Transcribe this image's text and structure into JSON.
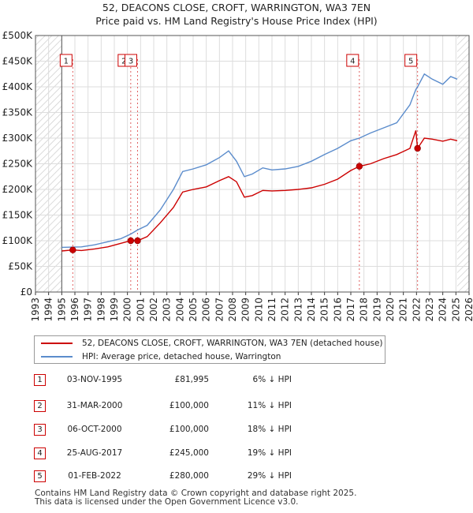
{
  "chart_data": {
    "type": "line",
    "title": "52, DEACONS CLOSE, CROFT, WARRINGTON, WA3 7EN",
    "subtitle": "Price paid vs. HM Land Registry's House Price Index (HPI)",
    "xlim": [
      1993,
      2026
    ],
    "ylim": [
      0,
      500000
    ],
    "x_ticks": [
      "1993",
      "1994",
      "1995",
      "1996",
      "1997",
      "1998",
      "1999",
      "2000",
      "2001",
      "2002",
      "2003",
      "2004",
      "2005",
      "2006",
      "2007",
      "2008",
      "2009",
      "2010",
      "2011",
      "2012",
      "2013",
      "2014",
      "2015",
      "2016",
      "2017",
      "2018",
      "2019",
      "2020",
      "2021",
      "2022",
      "2023",
      "2024",
      "2025",
      "2026"
    ],
    "y_ticks": [
      {
        "value": 0,
        "label": "£0"
      },
      {
        "value": 50000,
        "label": "£50K"
      },
      {
        "value": 100000,
        "label": "£100K"
      },
      {
        "value": 150000,
        "label": "£150K"
      },
      {
        "value": 200000,
        "label": "£200K"
      },
      {
        "value": 250000,
        "label": "£250K"
      },
      {
        "value": 300000,
        "label": "£300K"
      },
      {
        "value": 350000,
        "label": "£350K"
      },
      {
        "value": 400000,
        "label": "£400K"
      },
      {
        "value": 450000,
        "label": "£450K"
      },
      {
        "value": 500000,
        "label": "£500K"
      }
    ],
    "hatched_before": 1995.0,
    "hatched_after": 2025.1,
    "series": [
      {
        "name": "52, DEACONS CLOSE, CROFT, WARRINGTON, WA3 7EN (detached house)",
        "color": "#cc0000",
        "points": [
          [
            1995.0,
            80000
          ],
          [
            1995.84,
            81995
          ],
          [
            1996.5,
            81000
          ],
          [
            1997.5,
            84000
          ],
          [
            1998.5,
            88000
          ],
          [
            1999.5,
            95000
          ],
          [
            2000.25,
            100000
          ],
          [
            2000.77,
            100000
          ],
          [
            2001.5,
            108000
          ],
          [
            2002.5,
            135000
          ],
          [
            2003.5,
            165000
          ],
          [
            2004.2,
            195000
          ],
          [
            2005.0,
            200000
          ],
          [
            2006.0,
            205000
          ],
          [
            2007.0,
            217000
          ],
          [
            2007.7,
            225000
          ],
          [
            2008.3,
            215000
          ],
          [
            2008.9,
            185000
          ],
          [
            2009.5,
            188000
          ],
          [
            2010.3,
            198000
          ],
          [
            2011.0,
            197000
          ],
          [
            2012.0,
            198000
          ],
          [
            2013.0,
            200000
          ],
          [
            2014.0,
            203000
          ],
          [
            2015.0,
            210000
          ],
          [
            2016.0,
            220000
          ],
          [
            2017.0,
            237000
          ],
          [
            2017.65,
            245000
          ],
          [
            2018.5,
            250000
          ],
          [
            2019.5,
            260000
          ],
          [
            2020.5,
            268000
          ],
          [
            2021.5,
            280000
          ],
          [
            2021.95,
            315000
          ],
          [
            2022.08,
            280000
          ],
          [
            2022.6,
            300000
          ],
          [
            2023.2,
            298000
          ],
          [
            2024.0,
            294000
          ],
          [
            2024.6,
            298000
          ],
          [
            2025.1,
            295000
          ]
        ]
      },
      {
        "name": "HPI: Average price, detached house, Warrington",
        "color": "#5b8ccc",
        "points": [
          [
            1995.0,
            87000
          ],
          [
            1995.84,
            87500
          ],
          [
            1996.5,
            88000
          ],
          [
            1997.5,
            92000
          ],
          [
            1998.5,
            98000
          ],
          [
            1999.5,
            104000
          ],
          [
            2000.25,
            113000
          ],
          [
            2000.77,
            121000
          ],
          [
            2001.5,
            130000
          ],
          [
            2002.5,
            160000
          ],
          [
            2003.5,
            200000
          ],
          [
            2004.2,
            235000
          ],
          [
            2005.0,
            240000
          ],
          [
            2006.0,
            248000
          ],
          [
            2007.0,
            262000
          ],
          [
            2007.7,
            275000
          ],
          [
            2008.3,
            255000
          ],
          [
            2008.9,
            225000
          ],
          [
            2009.5,
            230000
          ],
          [
            2010.3,
            242000
          ],
          [
            2011.0,
            238000
          ],
          [
            2012.0,
            240000
          ],
          [
            2013.0,
            245000
          ],
          [
            2014.0,
            255000
          ],
          [
            2015.0,
            268000
          ],
          [
            2016.0,
            280000
          ],
          [
            2017.0,
            295000
          ],
          [
            2017.65,
            300000
          ],
          [
            2018.5,
            310000
          ],
          [
            2019.5,
            320000
          ],
          [
            2020.5,
            330000
          ],
          [
            2021.5,
            365000
          ],
          [
            2021.95,
            395000
          ],
          [
            2022.08,
            400000
          ],
          [
            2022.6,
            425000
          ],
          [
            2023.2,
            415000
          ],
          [
            2024.0,
            405000
          ],
          [
            2024.6,
            420000
          ],
          [
            2025.1,
            415000
          ]
        ]
      }
    ],
    "sales": [
      {
        "label": "1",
        "x": 1995.84,
        "value": 81995
      },
      {
        "label": "2",
        "x": 2000.25,
        "value": 100000
      },
      {
        "label": "3",
        "x": 2000.77,
        "value": 100000
      },
      {
        "label": "4",
        "x": 2017.65,
        "value": 245000
      },
      {
        "label": "5",
        "x": 2022.08,
        "value": 280000
      }
    ]
  },
  "legend": {
    "items": [
      {
        "label": "52, DEACONS CLOSE, CROFT, WARRINGTON, WA3 7EN (detached house)",
        "color": "#cc0000"
      },
      {
        "label": "HPI: Average price, detached house, Warrington",
        "color": "#5b8ccc"
      }
    ]
  },
  "transactions": [
    {
      "num": "1",
      "date": "03-NOV-1995",
      "price": "£81,995",
      "hpi": "6% ↓ HPI"
    },
    {
      "num": "2",
      "date": "31-MAR-2000",
      "price": "£100,000",
      "hpi": "11% ↓ HPI"
    },
    {
      "num": "3",
      "date": "06-OCT-2000",
      "price": "£100,000",
      "hpi": "18% ↓ HPI"
    },
    {
      "num": "4",
      "date": "25-AUG-2017",
      "price": "£245,000",
      "hpi": "19% ↓ HPI"
    },
    {
      "num": "5",
      "date": "01-FEB-2022",
      "price": "£280,000",
      "hpi": "29% ↓ HPI"
    }
  ],
  "footer": {
    "line1": "Contains HM Land Registry data © Crown copyright and database right 2025.",
    "line2": "This data is licensed under the Open Government Licence v3.0."
  }
}
